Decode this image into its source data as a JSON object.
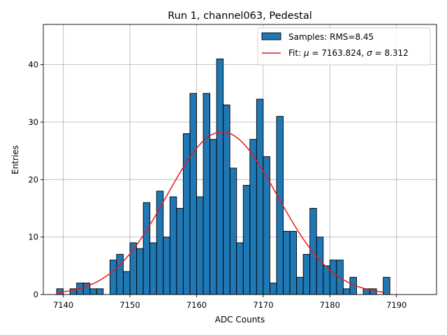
{
  "chart_data": {
    "type": "bar",
    "title": "Run 1, channel063, Pedestal",
    "xlabel": "ADC Counts",
    "ylabel": "Entries",
    "xlim": [
      7137,
      7196
    ],
    "ylim": [
      0,
      47
    ],
    "xticks": [
      7140,
      7150,
      7160,
      7170,
      7180,
      7190
    ],
    "yticks": [
      0,
      10,
      20,
      30,
      40
    ],
    "grid": true,
    "legend_position": "top-right",
    "bin_width": 1,
    "bin_start": 7139,
    "counts": [
      1,
      0,
      1,
      2,
      2,
      1,
      1,
      0,
      6,
      7,
      4,
      9,
      8,
      16,
      9,
      18,
      10,
      17,
      15,
      28,
      35,
      17,
      35,
      27,
      41,
      33,
      22,
      9,
      19,
      27,
      34,
      24,
      2,
      31,
      11,
      11,
      3,
      7,
      15,
      10,
      5,
      6,
      6,
      1,
      3,
      0,
      1,
      1,
      0,
      3
    ],
    "series": [
      {
        "name": "Samples: RMS=8.45",
        "kind": "histogram",
        "color": "#1f77b4"
      },
      {
        "name_prefix": "Fit: ",
        "name_mu": "μ",
        "name_mid": " = 7163.824, ",
        "name_sigma": "σ",
        "name_suffix": " = 8.312",
        "kind": "gaussian",
        "color": "#e8191a",
        "mu": 7163.824,
        "sigma": 8.312,
        "amplitude": 28.3,
        "x_range": [
          7139,
          7188
        ]
      }
    ]
  }
}
